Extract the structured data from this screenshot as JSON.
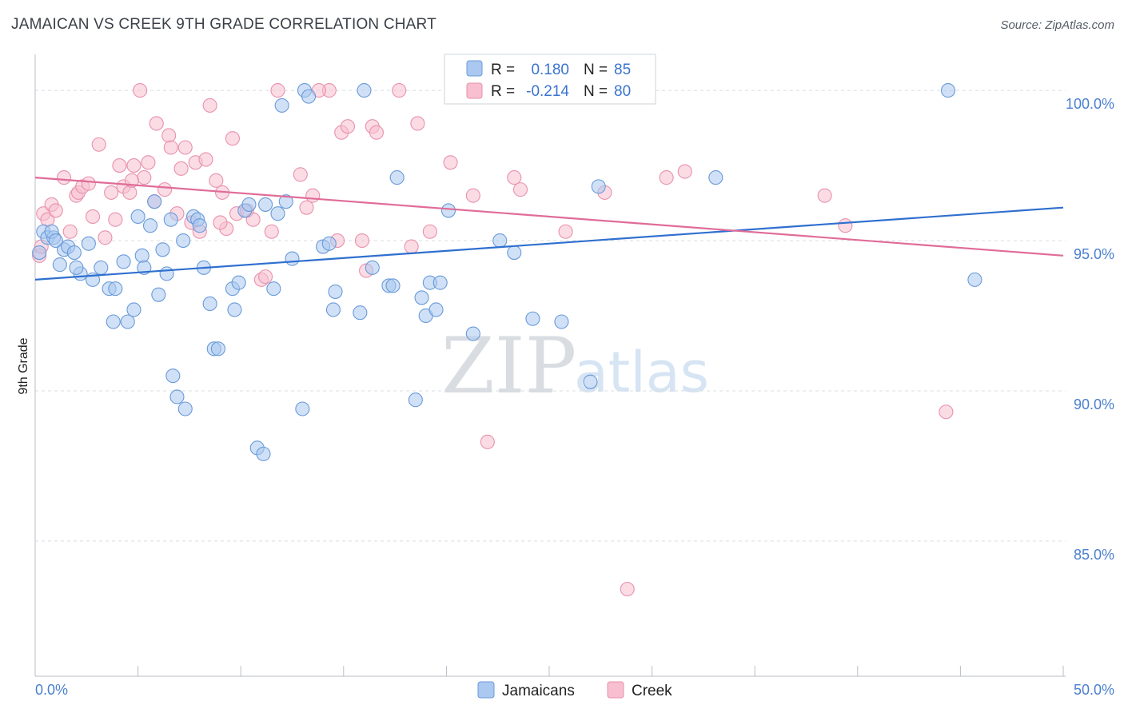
{
  "header": {
    "title": "JAMAICAN VS CREEK 9TH GRADE CORRELATION CHART",
    "source": "Source: ZipAtlas.com"
  },
  "legend": {
    "r_label": "R =",
    "n_label": "N =",
    "rows": [
      {
        "r": "0.180",
        "n": "85"
      },
      {
        "r": "-0.214",
        "n": "80"
      }
    ]
  },
  "bottom_legend": [
    "Jamaicans",
    "Creek"
  ],
  "watermark": {
    "zip": "ZIP",
    "atlas": "atlas"
  },
  "colors": {
    "jamaicans_fill": "#aac8f0",
    "jamaicans_stroke": "#6a9ad8",
    "jamaicans_line": "#2f6fcf",
    "creek_fill": "#f7bfd0",
    "creek_stroke": "#e891ad",
    "creek_line": "#e06c98",
    "grid": "#d8dce2",
    "tick_text": "#4a7fd0"
  },
  "chart_data": {
    "type": "scatter",
    "title": "JAMAICAN VS CREEK 9TH GRADE CORRELATION CHART",
    "xlabel": "",
    "ylabel": "9th Grade",
    "xlim": [
      0,
      50
    ],
    "ylim": [
      80.5,
      101.2
    ],
    "x_tick_labels": [
      "0.0%",
      "50.0%"
    ],
    "y_ticks": [
      85,
      90,
      95,
      100
    ],
    "y_tick_labels": [
      "85.0%",
      "90.0%",
      "95.0%",
      "100.0%"
    ],
    "grid": "horizontal dashed",
    "legend_position": "top-center",
    "series": [
      {
        "name": "Jamaicans",
        "trend": {
          "x": [
            0,
            50
          ],
          "y": [
            93.7,
            96.1
          ]
        },
        "points": [
          [
            0.4,
            95.3
          ],
          [
            0.6,
            95.1
          ],
          [
            0.9,
            95.1
          ],
          [
            1.2,
            94.2
          ],
          [
            1.4,
            94.7
          ],
          [
            1.6,
            94.8
          ],
          [
            1.9,
            94.6
          ],
          [
            2.2,
            93.9
          ],
          [
            2.6,
            94.9
          ],
          [
            2.8,
            93.7
          ],
          [
            3.2,
            94.1
          ],
          [
            3.6,
            93.4
          ],
          [
            3.9,
            93.4
          ],
          [
            4.3,
            94.3
          ],
          [
            3.8,
            92.3
          ],
          [
            4.5,
            92.3
          ],
          [
            4.8,
            92.7
          ],
          [
            5.0,
            95.8
          ],
          [
            5.2,
            94.5
          ],
          [
            5.3,
            94.1
          ],
          [
            5.6,
            95.5
          ],
          [
            5.8,
            96.3
          ],
          [
            6.0,
            93.2
          ],
          [
            6.2,
            94.7
          ],
          [
            6.4,
            93.9
          ],
          [
            6.7,
            90.5
          ],
          [
            6.9,
            89.8
          ],
          [
            7.2,
            95.0
          ],
          [
            7.3,
            89.4
          ],
          [
            7.7,
            95.8
          ],
          [
            7.9,
            95.7
          ],
          [
            8.0,
            95.5
          ],
          [
            8.2,
            94.1
          ],
          [
            8.5,
            92.9
          ],
          [
            8.7,
            91.4
          ],
          [
            8.9,
            91.4
          ],
          [
            9.6,
            93.4
          ],
          [
            9.7,
            92.7
          ],
          [
            9.9,
            93.6
          ],
          [
            10.2,
            96.0
          ],
          [
            10.4,
            96.2
          ],
          [
            10.8,
            88.1
          ],
          [
            11.1,
            87.9
          ],
          [
            11.2,
            96.2
          ],
          [
            11.6,
            93.4
          ],
          [
            11.8,
            95.9
          ],
          [
            12.0,
            99.5
          ],
          [
            12.2,
            96.3
          ],
          [
            12.5,
            94.4
          ],
          [
            13.0,
            89.4
          ],
          [
            13.1,
            100.0
          ],
          [
            13.3,
            99.8
          ],
          [
            14.0,
            94.8
          ],
          [
            14.3,
            94.9
          ],
          [
            14.5,
            92.7
          ],
          [
            14.6,
            93.3
          ],
          [
            15.8,
            92.6
          ],
          [
            16.0,
            100.0
          ],
          [
            16.4,
            94.1
          ],
          [
            17.2,
            93.5
          ],
          [
            17.4,
            93.5
          ],
          [
            17.6,
            97.1
          ],
          [
            18.5,
            89.7
          ],
          [
            18.8,
            93.1
          ],
          [
            19.0,
            92.5
          ],
          [
            19.2,
            93.6
          ],
          [
            19.5,
            92.7
          ],
          [
            19.7,
            93.6
          ],
          [
            20.1,
            96.0
          ],
          [
            21.3,
            91.9
          ],
          [
            22.6,
            95.0
          ],
          [
            23.3,
            94.6
          ],
          [
            24.2,
            92.4
          ],
          [
            25.6,
            92.3
          ],
          [
            26.2,
            100.0
          ],
          [
            27.0,
            90.3
          ],
          [
            27.4,
            96.8
          ],
          [
            33.1,
            97.1
          ],
          [
            44.4,
            100.0
          ],
          [
            45.7,
            93.7
          ],
          [
            0.2,
            94.6
          ],
          [
            0.8,
            95.3
          ],
          [
            1.0,
            95.0
          ],
          [
            2.0,
            94.1
          ],
          [
            6.6,
            95.7
          ]
        ]
      },
      {
        "name": "Creek",
        "trend": {
          "x": [
            0,
            50
          ],
          "y": [
            97.1,
            94.5
          ]
        },
        "points": [
          [
            0.2,
            94.5
          ],
          [
            0.4,
            95.9
          ],
          [
            0.6,
            95.7
          ],
          [
            0.8,
            96.2
          ],
          [
            1.0,
            96.0
          ],
          [
            1.4,
            97.1
          ],
          [
            1.7,
            95.3
          ],
          [
            2.0,
            96.5
          ],
          [
            2.1,
            96.6
          ],
          [
            2.3,
            96.8
          ],
          [
            2.6,
            96.9
          ],
          [
            2.8,
            95.8
          ],
          [
            3.1,
            98.2
          ],
          [
            3.4,
            95.1
          ],
          [
            3.7,
            96.6
          ],
          [
            3.9,
            95.7
          ],
          [
            4.1,
            97.5
          ],
          [
            4.3,
            96.8
          ],
          [
            4.6,
            96.6
          ],
          [
            4.8,
            97.5
          ],
          [
            5.1,
            100.0
          ],
          [
            5.3,
            97.1
          ],
          [
            5.5,
            97.6
          ],
          [
            5.8,
            96.3
          ],
          [
            5.9,
            98.9
          ],
          [
            6.3,
            96.7
          ],
          [
            6.5,
            98.5
          ],
          [
            6.6,
            98.1
          ],
          [
            6.9,
            95.9
          ],
          [
            7.1,
            97.4
          ],
          [
            7.3,
            98.1
          ],
          [
            7.6,
            95.6
          ],
          [
            7.8,
            97.6
          ],
          [
            8.0,
            95.3
          ],
          [
            8.3,
            97.7
          ],
          [
            8.5,
            99.5
          ],
          [
            8.8,
            97.0
          ],
          [
            9.1,
            96.6
          ],
          [
            9.3,
            95.4
          ],
          [
            9.6,
            98.4
          ],
          [
            9.8,
            95.9
          ],
          [
            10.3,
            96.0
          ],
          [
            10.6,
            95.7
          ],
          [
            11.0,
            93.7
          ],
          [
            11.2,
            93.8
          ],
          [
            11.5,
            95.3
          ],
          [
            11.8,
            100.0
          ],
          [
            12.9,
            97.2
          ],
          [
            13.2,
            96.1
          ],
          [
            13.5,
            96.5
          ],
          [
            14.3,
            100.0
          ],
          [
            14.7,
            95.0
          ],
          [
            14.9,
            98.6
          ],
          [
            15.2,
            98.8
          ],
          [
            15.9,
            95.0
          ],
          [
            16.1,
            94.0
          ],
          [
            16.4,
            98.8
          ],
          [
            16.6,
            98.6
          ],
          [
            17.7,
            100.0
          ],
          [
            18.3,
            94.8
          ],
          [
            18.6,
            98.9
          ],
          [
            19.2,
            95.3
          ],
          [
            20.2,
            97.6
          ],
          [
            21.3,
            96.5
          ],
          [
            22.0,
            88.3
          ],
          [
            23.3,
            97.1
          ],
          [
            23.6,
            96.7
          ],
          [
            24.9,
            100.0
          ],
          [
            25.8,
            95.3
          ],
          [
            27.7,
            96.6
          ],
          [
            28.8,
            83.4
          ],
          [
            30.7,
            97.1
          ],
          [
            31.6,
            97.3
          ],
          [
            38.4,
            96.5
          ],
          [
            39.4,
            95.5
          ],
          [
            44.3,
            89.3
          ],
          [
            0.3,
            94.8
          ],
          [
            4.7,
            97.0
          ],
          [
            9.0,
            95.6
          ],
          [
            13.8,
            100.0
          ]
        ]
      }
    ]
  }
}
